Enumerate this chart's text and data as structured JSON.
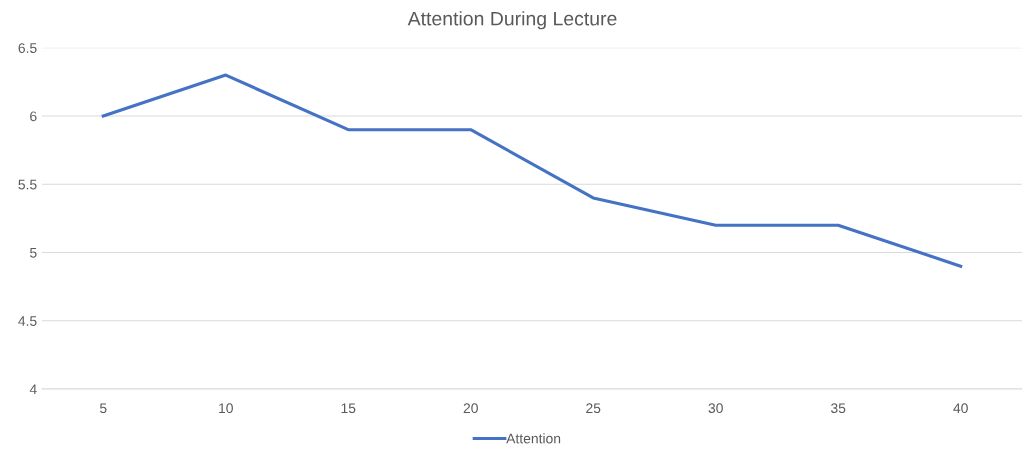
{
  "chart_data": {
    "type": "line",
    "title": "Attention During Lecture",
    "categories": [
      "5",
      "10",
      "15",
      "20",
      "25",
      "30",
      "35",
      "40"
    ],
    "series": [
      {
        "name": "Attention",
        "color": "#4472c4",
        "values": [
          6.0,
          6.3,
          5.9,
          5.9,
          5.4,
          5.2,
          5.2,
          4.9
        ]
      }
    ],
    "ylim": [
      4,
      6.5
    ],
    "yticks": [
      4,
      4.5,
      5,
      5.5,
      6,
      6.5
    ],
    "grid": "y",
    "legend": "bottom",
    "marker": "none",
    "line_style": "solid"
  }
}
